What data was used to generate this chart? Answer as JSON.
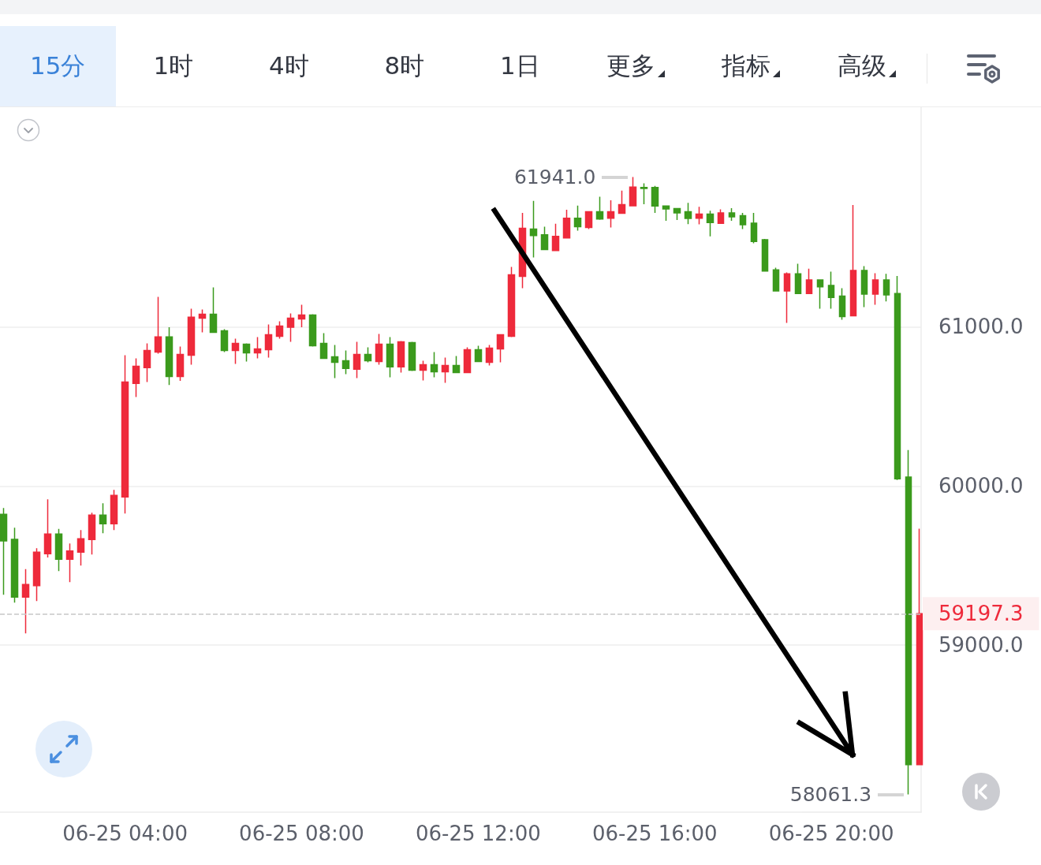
{
  "chart_data": {
    "type": "candlestick",
    "x": [
      "--06-25T01:15",
      "--06-25T01:30",
      "--06-25T01:45",
      "--06-25T02:00",
      "--06-25T02:15",
      "--06-25T02:30",
      "--06-25T02:45",
      "--06-25T03:00",
      "--06-25T03:15",
      "--06-25T03:30",
      "--06-25T03:45",
      "--06-25T04:00",
      "--06-25T04:15",
      "--06-25T04:30",
      "--06-25T04:45",
      "--06-25T05:00",
      "--06-25T05:15",
      "--06-25T05:30",
      "--06-25T05:45",
      "--06-25T06:00",
      "--06-25T06:15",
      "--06-25T06:30",
      "--06-25T06:45",
      "--06-25T07:00",
      "--06-25T07:15",
      "--06-25T07:30",
      "--06-25T07:45",
      "--06-25T08:00",
      "--06-25T08:15",
      "--06-25T08:30",
      "--06-25T08:45",
      "--06-25T09:00",
      "--06-25T09:15",
      "--06-25T09:30",
      "--06-25T09:45",
      "--06-25T10:00",
      "--06-25T10:15",
      "--06-25T10:30",
      "--06-25T10:45",
      "--06-25T11:00",
      "--06-25T11:15",
      "--06-25T11:30",
      "--06-25T11:45",
      "--06-25T12:00",
      "--06-25T12:15",
      "--06-25T12:30",
      "--06-25T12:45",
      "--06-25T13:00",
      "--06-25T13:15",
      "--06-25T13:30",
      "--06-25T13:45",
      "--06-25T14:00",
      "--06-25T14:15",
      "--06-25T14:30",
      "--06-25T14:45",
      "--06-25T15:00",
      "--06-25T15:15",
      "--06-25T15:30",
      "--06-25T15:45",
      "--06-25T16:00",
      "--06-25T16:15",
      "--06-25T16:30",
      "--06-25T16:45",
      "--06-25T17:00",
      "--06-25T17:15",
      "--06-25T17:30",
      "--06-25T17:45",
      "--06-25T18:00",
      "--06-25T18:15",
      "--06-25T18:30",
      "--06-25T18:45",
      "--06-25T19:00",
      "--06-25T19:15",
      "--06-25T19:30",
      "--06-25T19:45",
      "--06-25T20:00",
      "--06-25T20:15",
      "--06-25T20:30",
      "--06-25T20:45",
      "--06-25T21:00",
      "--06-25T21:15",
      "--06-25T21:30",
      "--06-25T21:45",
      "--06-25T22:00"
    ],
    "ohlc": [
      [
        59822,
        59862,
        59317,
        59654
      ],
      [
        59664,
        59738,
        59267,
        59302
      ],
      [
        59302,
        59477,
        59074,
        59381
      ],
      [
        59373,
        59609,
        59277,
        59584
      ],
      [
        59574,
        59916,
        59550,
        59698
      ],
      [
        59698,
        59730,
        59465,
        59539
      ],
      [
        59539,
        59638,
        59396,
        59591
      ],
      [
        59584,
        59723,
        59500,
        59668
      ],
      [
        59663,
        59832,
        59569,
        59817
      ],
      [
        59817,
        59891,
        59703,
        59762
      ],
      [
        59762,
        59975,
        59723,
        59941
      ],
      [
        59931,
        60822,
        59827,
        60653
      ],
      [
        60644,
        60802,
        60559,
        60752
      ],
      [
        60743,
        60896,
        60653,
        60851
      ],
      [
        60842,
        61188,
        60832,
        60937
      ],
      [
        60937,
        60998,
        60634,
        60688
      ],
      [
        60688,
        60876,
        60660,
        60827
      ],
      [
        60822,
        61114,
        60762,
        61061
      ],
      [
        61054,
        61109,
        60965,
        61079
      ],
      [
        61079,
        61248,
        60965,
        60965
      ],
      [
        60975,
        60985,
        60842,
        60851
      ],
      [
        60851,
        60926,
        60767,
        60896
      ],
      [
        60891,
        60896,
        60782,
        60837
      ],
      [
        60837,
        60936,
        60802,
        60861
      ],
      [
        60856,
        61015,
        60807,
        60951
      ],
      [
        60941,
        61035,
        60926,
        61005
      ],
      [
        60998,
        61084,
        60906,
        61054
      ],
      [
        61050,
        61139,
        60998,
        61074
      ],
      [
        61074,
        61079,
        60876,
        60881
      ],
      [
        60896,
        60960,
        60802,
        60802
      ],
      [
        60812,
        60886,
        60678,
        60777
      ],
      [
        60787,
        60851,
        60703,
        60738
      ],
      [
        60733,
        60906,
        60678,
        60827
      ],
      [
        60827,
        60871,
        60777,
        60787
      ],
      [
        60782,
        60955,
        60762,
        60891
      ],
      [
        60891,
        60936,
        60683,
        60748
      ],
      [
        60748,
        60911,
        60713,
        60906
      ],
      [
        60901,
        60906,
        60723,
        60728
      ],
      [
        60728,
        60787,
        60663,
        60762
      ],
      [
        60762,
        60842,
        60683,
        60718
      ],
      [
        60718,
        60807,
        60648,
        60757
      ],
      [
        60757,
        60817,
        60713,
        60713
      ],
      [
        60713,
        60871,
        60713,
        60856
      ],
      [
        60856,
        60881,
        60782,
        60782
      ],
      [
        60777,
        60886,
        60757,
        60866
      ],
      [
        60861,
        60950,
        60777,
        60950
      ],
      [
        60941,
        61376,
        60936,
        61327
      ],
      [
        61317,
        61716,
        61243,
        61619
      ],
      [
        61614,
        61792,
        61436,
        61574
      ],
      [
        61579,
        61629,
        61485,
        61485
      ],
      [
        61480,
        61648,
        61480,
        61569
      ],
      [
        61559,
        61736,
        61559,
        61683
      ],
      [
        61683,
        61762,
        61604,
        61629
      ],
      [
        61624,
        61726,
        61614,
        61723
      ],
      [
        61723,
        61817,
        61673,
        61678
      ],
      [
        61683,
        61795,
        61624,
        61723
      ],
      [
        61713,
        61856,
        61713,
        61768
      ],
      [
        61761,
        61941,
        61761,
        61878
      ],
      [
        61876,
        61902,
        61771,
        61870
      ],
      [
        61876,
        61886,
        61716,
        61759
      ],
      [
        61759,
        61762,
        61667,
        61741
      ],
      [
        61743,
        61746,
        61672,
        61716
      ],
      [
        61723,
        61779,
        61646,
        61681
      ],
      [
        61683,
        61754,
        61644,
        61708
      ],
      [
        61708,
        61730,
        61569,
        61655
      ],
      [
        61650,
        61738,
        61648,
        61716
      ],
      [
        61716,
        61746,
        61667,
        61691
      ],
      [
        61699,
        61716,
        61614,
        61642
      ],
      [
        61652,
        61716,
        61525,
        61536
      ],
      [
        61548,
        61553,
        61350,
        61350
      ],
      [
        61358,
        61371,
        61226,
        61226
      ],
      [
        61226,
        61342,
        61025,
        61333
      ],
      [
        61333,
        61396,
        61209,
        61209
      ],
      [
        61209,
        61366,
        61209,
        61295
      ],
      [
        61295,
        61295,
        61114,
        61252
      ],
      [
        61260,
        61347,
        61114,
        61184
      ],
      [
        61193,
        61243,
        61045,
        61064
      ],
      [
        61069,
        61766,
        61069,
        61354
      ],
      [
        61354,
        61381,
        61124,
        61205
      ],
      [
        61205,
        61337,
        61139,
        61295
      ],
      [
        61295,
        61333,
        61160,
        61201
      ],
      [
        61209,
        61319,
        60037,
        60045
      ],
      [
        60056,
        60226,
        58061.3,
        58248
      ],
      [
        58248,
        59732,
        58248,
        59197.3
      ]
    ],
    "colors": [
      "#3b9a1c",
      "#3b9a1c",
      "#ee2a3b",
      "#ee2a3b",
      "#ee2a3b",
      "#3b9a1c",
      "#ee2a3b",
      "#ee2a3b",
      "#ee2a3b",
      "#3b9a1c",
      "#ee2a3b",
      "#ee2a3b",
      "#ee2a3b",
      "#ee2a3b",
      "#ee2a3b",
      "#3b9a1c",
      "#ee2a3b",
      "#ee2a3b",
      "#ee2a3b",
      "#3b9a1c",
      "#3b9a1c",
      "#ee2a3b",
      "#3b9a1c",
      "#ee2a3b",
      "#ee2a3b",
      "#ee2a3b",
      "#ee2a3b",
      "#ee2a3b",
      "#3b9a1c",
      "#3b9a1c",
      "#3b9a1c",
      "#3b9a1c",
      "#ee2a3b",
      "#3b9a1c",
      "#ee2a3b",
      "#3b9a1c",
      "#ee2a3b",
      "#3b9a1c",
      "#ee2a3b",
      "#3b9a1c",
      "#ee2a3b",
      "#3b9a1c",
      "#ee2a3b",
      "#3b9a1c",
      "#ee2a3b",
      "#ee2a3b",
      "#ee2a3b",
      "#ee2a3b",
      "#3b9a1c",
      "#3b9a1c",
      "#ee2a3b",
      "#ee2a3b",
      "#3b9a1c",
      "#ee2a3b",
      "#3b9a1c",
      "#ee2a3b",
      "#ee2a3b",
      "#ee2a3b",
      "#3b9a1c",
      "#3b9a1c",
      "#3b9a1c",
      "#3b9a1c",
      "#3b9a1c",
      "#ee2a3b",
      "#3b9a1c",
      "#ee2a3b",
      "#3b9a1c",
      "#3b9a1c",
      "#3b9a1c",
      "#3b9a1c",
      "#3b9a1c",
      "#ee2a3b",
      "#3b9a1c",
      "#ee2a3b",
      "#3b9a1c",
      "#3b9a1c",
      "#3b9a1c",
      "#ee2a3b",
      "#3b9a1c",
      "#ee2a3b",
      "#3b9a1c",
      "#3b9a1c",
      "#3b9a1c",
      "#ee2a3b"
    ],
    "xlim": [
      "--06-25T01:10",
      "--06-25T22:02"
    ],
    "xticks": [
      {
        "value": "--06-25T04:00",
        "label": "06-25 04:00"
      },
      {
        "value": "--06-25T08:00",
        "label": "06-25 08:00"
      },
      {
        "value": "--06-25T12:00",
        "label": "06-25 12:00"
      },
      {
        "value": "--06-25T16:00",
        "label": "06-25 16:00"
      },
      {
        "value": "--06-25T20:00",
        "label": "06-25 20:00"
      }
    ],
    "ylim": [
      57950,
      62380
    ],
    "yticks": [
      {
        "value": 59000,
        "label": "59000.0"
      },
      {
        "value": 60000,
        "label": "60000.0"
      },
      {
        "value": 61000,
        "label": "61000.0"
      }
    ],
    "grid": "y",
    "ref_lines": [
      {
        "axis": "y",
        "value": 59197.3,
        "label": "59197.3",
        "color": "#c8c8c8",
        "line_style": "dashed"
      }
    ],
    "annotations": [
      "15分",
      "1时",
      "4时",
      "8时",
      "1日",
      "更多",
      "指标",
      "高级",
      {
        "text": "61941.0",
        "x": "--06-25T15:30",
        "y": 61941
      },
      {
        "text": "58061.3",
        "x": "--06-25T21:45",
        "y": 58061.3
      }
    ]
  }
}
